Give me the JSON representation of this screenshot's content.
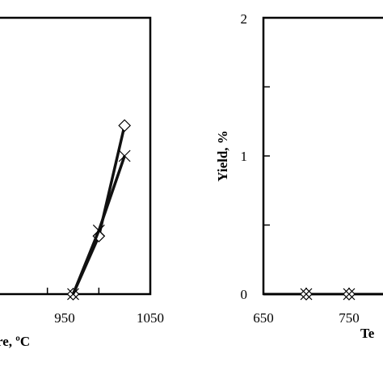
{
  "chart_data": [
    {
      "type": "line",
      "title": "",
      "xlabel": "re, ºC",
      "ylabel": "",
      "xlim": [
        750,
        1050
      ],
      "ylim": [
        0,
        2
      ],
      "xticks": [
        "950",
        "1050"
      ],
      "series": [
        {
          "marker": "diamond",
          "x": [
            900,
            950,
            1000
          ],
          "y": [
            0,
            0.42,
            1.22
          ]
        },
        {
          "marker": "cross",
          "x": [
            900,
            950,
            1000
          ],
          "y": [
            0,
            0.46,
            1.0
          ]
        }
      ]
    },
    {
      "type": "scatter",
      "title": "",
      "xlabel": "Te",
      "ylabel": "Yield,  %",
      "xlim": [
        650,
        850
      ],
      "ylim": [
        0,
        2
      ],
      "xticks": [
        "650",
        "750"
      ],
      "yticks": [
        "0",
        "1",
        "2"
      ],
      "series": [
        {
          "marker": "diamond",
          "x": [
            700,
            750
          ],
          "y": [
            0,
            0
          ]
        },
        {
          "marker": "cross",
          "x": [
            700,
            750
          ],
          "y": [
            0,
            0
          ]
        }
      ]
    }
  ]
}
